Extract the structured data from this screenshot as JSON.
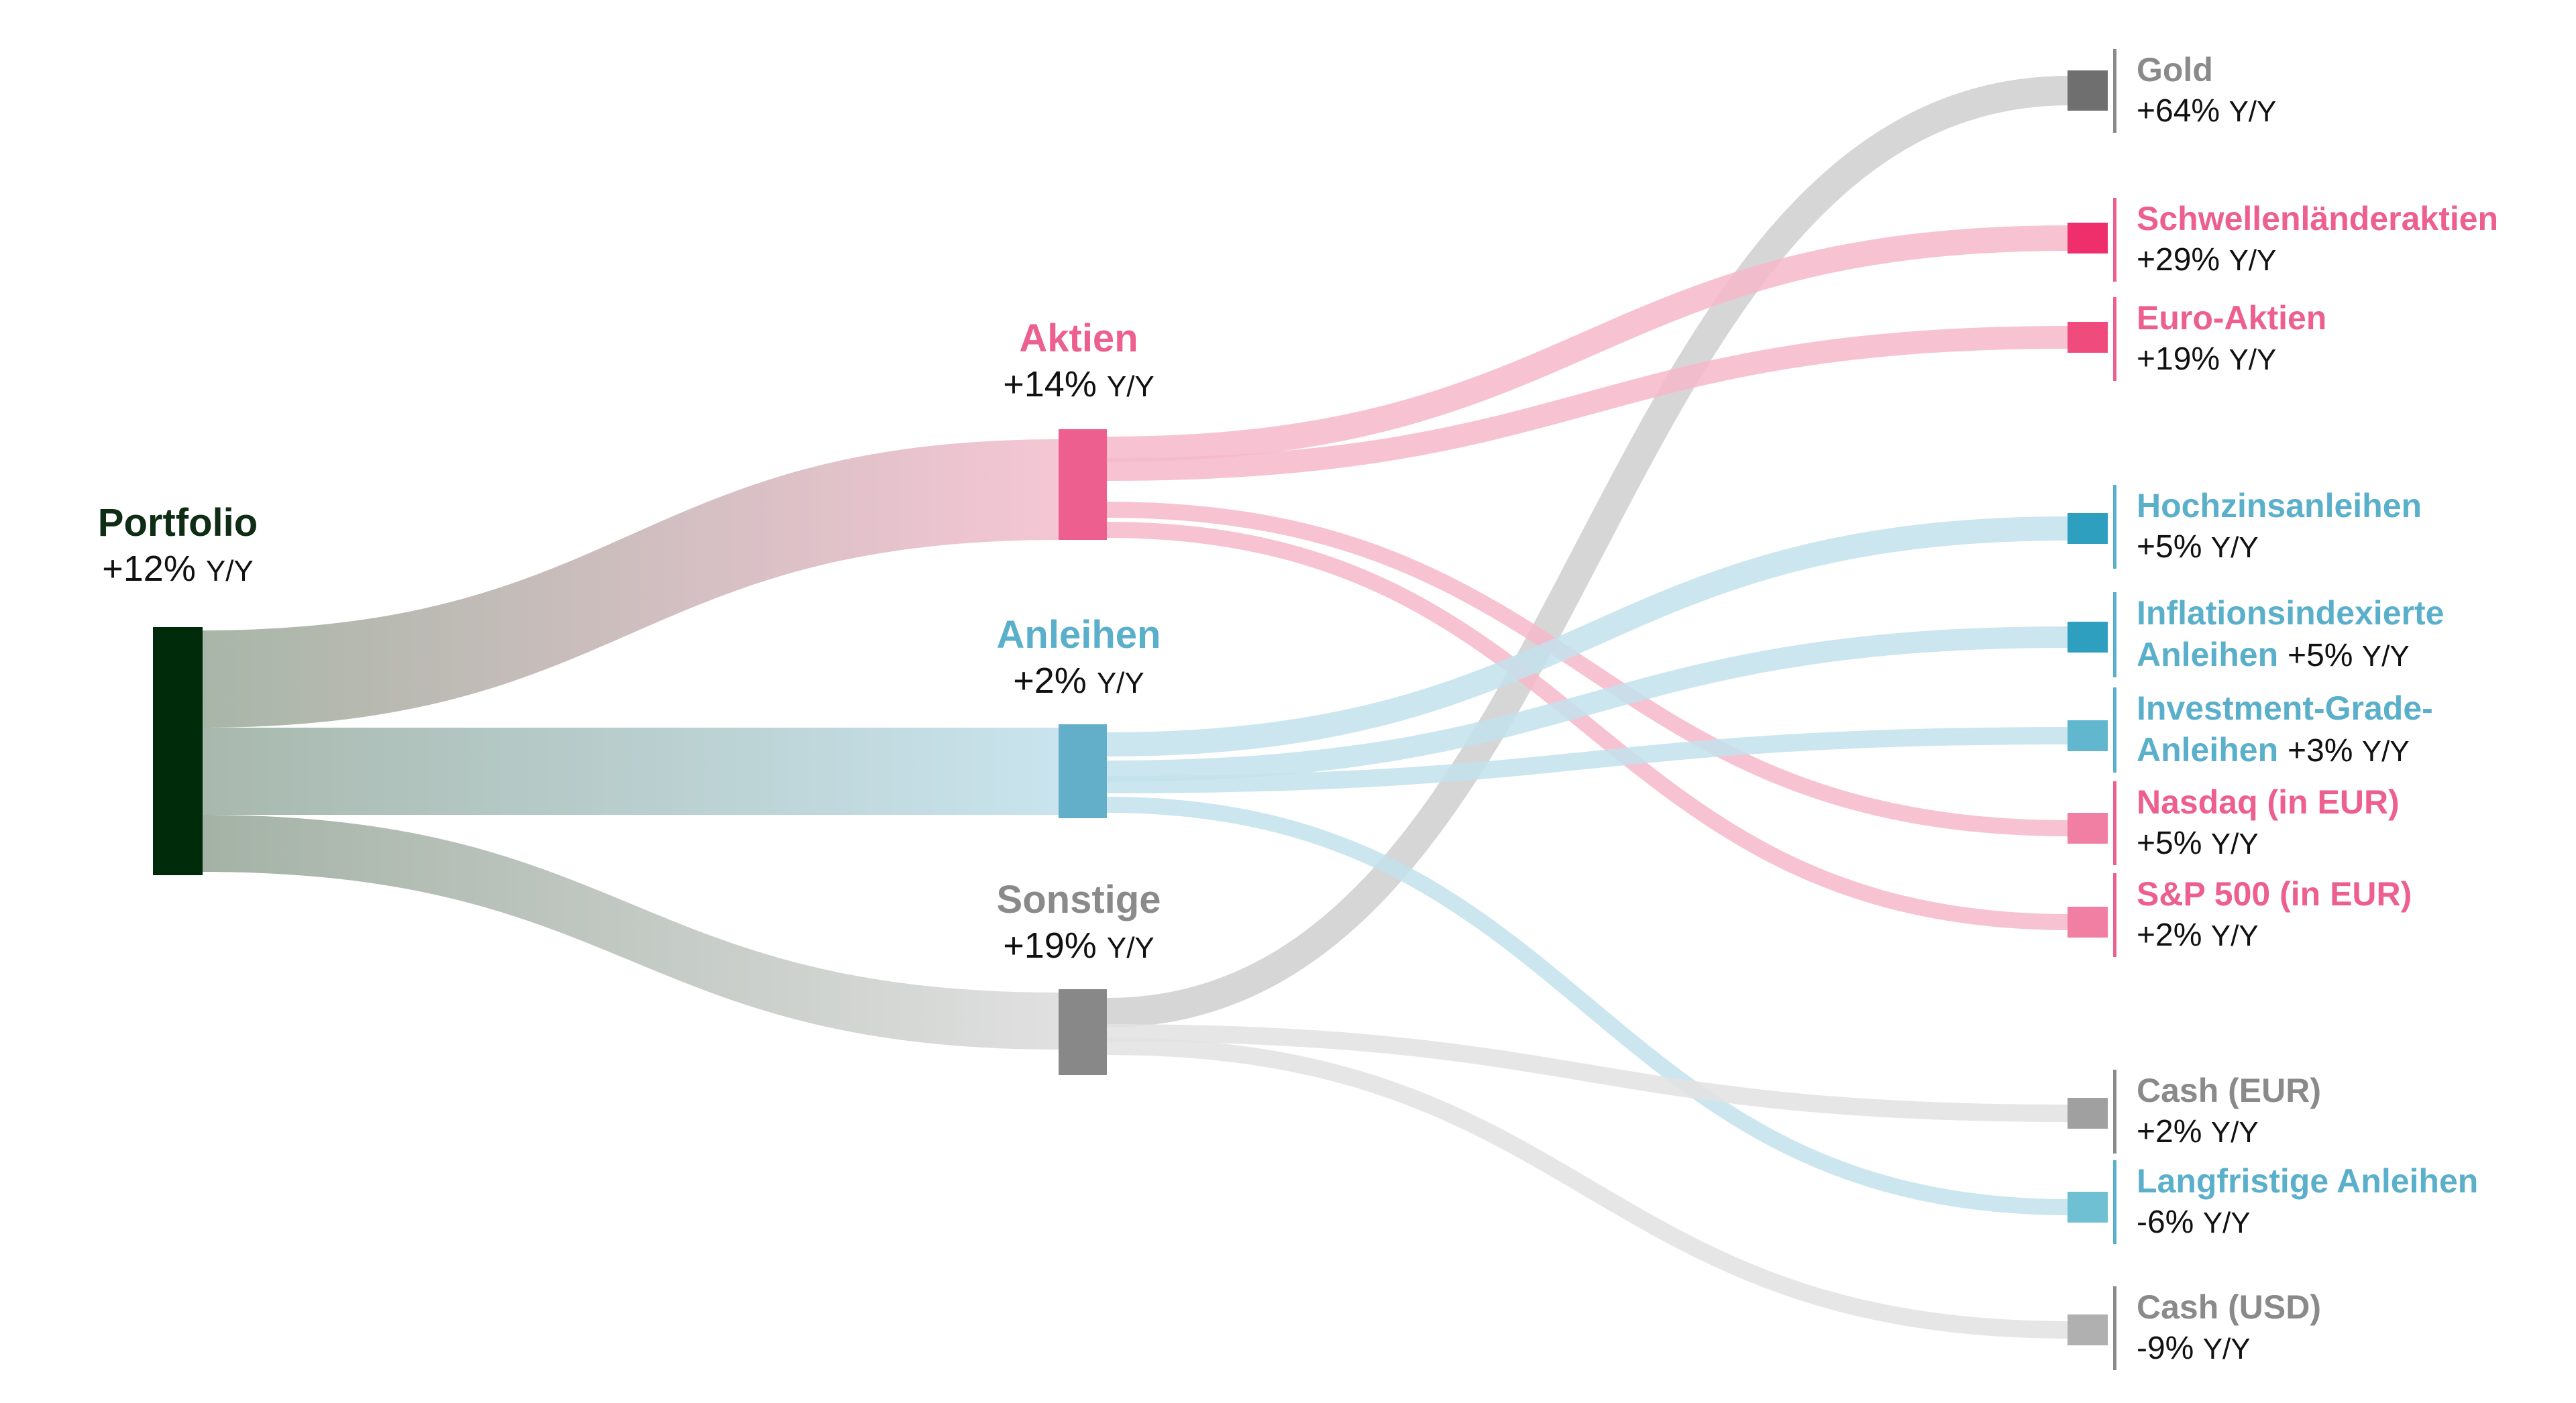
{
  "nodes": {
    "portfolio": {
      "name": "Portfolio",
      "change": "+12%",
      "unit": "Y/Y",
      "color": "#002b0b"
    },
    "aktien": {
      "name": "Aktien",
      "change": "+14%",
      "unit": "Y/Y",
      "color": "#ec5f8e"
    },
    "anleihen": {
      "name": "Anleihen",
      "change": "+2%",
      "unit": "Y/Y",
      "color": "#63afc9"
    },
    "sonstige": {
      "name": "Sonstige",
      "change": "+19%",
      "unit": "Y/Y",
      "color": "#888888"
    }
  },
  "leaves": [
    {
      "id": "gold",
      "name": "Gold",
      "change": "+64%",
      "unit": "Y/Y",
      "parent": "sonstige",
      "color": "#6f6f6f",
      "text_color": "#8a8a8a"
    },
    {
      "id": "schwellen",
      "name": "Schwellenländeraktien",
      "change": "+29%",
      "unit": "Y/Y",
      "parent": "aktien",
      "color": "#ef2f6c",
      "text_color": "#ec5f8e"
    },
    {
      "id": "euro",
      "name": "Euro-Aktien",
      "change": "+19%",
      "unit": "Y/Y",
      "parent": "aktien",
      "color": "#ef4b7d",
      "text_color": "#ec5f8e"
    },
    {
      "id": "hochzins",
      "name": "Hochzinsanleihen",
      "change": "+5%",
      "unit": "Y/Y",
      "parent": "anleihen",
      "color": "#2f9fbf",
      "text_color": "#5aafca"
    },
    {
      "id": "inflation",
      "name": "Inflationsindexierte",
      "name2": "Anleihen",
      "change": "+5%",
      "unit": "Y/Y",
      "parent": "anleihen",
      "color": "#2f9fbf",
      "text_color": "#5aafca"
    },
    {
      "id": "ig",
      "name": "Investment-Grade-",
      "name2": "Anleihen",
      "change": "+3%",
      "unit": "Y/Y",
      "parent": "anleihen",
      "color": "#60b7ce",
      "text_color": "#5aafca"
    },
    {
      "id": "nasdaq",
      "name": "Nasdaq (in EUR)",
      "change": "+5%",
      "unit": "Y/Y",
      "parent": "aktien",
      "color": "#f07fa3",
      "text_color": "#ec5f8e"
    },
    {
      "id": "sp500",
      "name": "S&P 500 (in EUR)",
      "change": "+2%",
      "unit": "Y/Y",
      "parent": "aktien",
      "color": "#f07fa3",
      "text_color": "#ec5f8e"
    },
    {
      "id": "casheur",
      "name": "Cash (EUR)",
      "change": "+2%",
      "unit": "Y/Y",
      "parent": "sonstige",
      "color": "#a0a0a0",
      "text_color": "#8a8a8a"
    },
    {
      "id": "langfrist",
      "name": "Langfristige Anleihen",
      "change": "-6%",
      "unit": "Y/Y",
      "parent": "anleihen",
      "color": "#6ec0d2",
      "text_color": "#5aafca"
    },
    {
      "id": "cashusd",
      "name": "Cash (USD)",
      "change": "-9%",
      "unit": "Y/Y",
      "parent": "sonstige",
      "color": "#b0b0b0",
      "text_color": "#8a8a8a"
    }
  ]
}
